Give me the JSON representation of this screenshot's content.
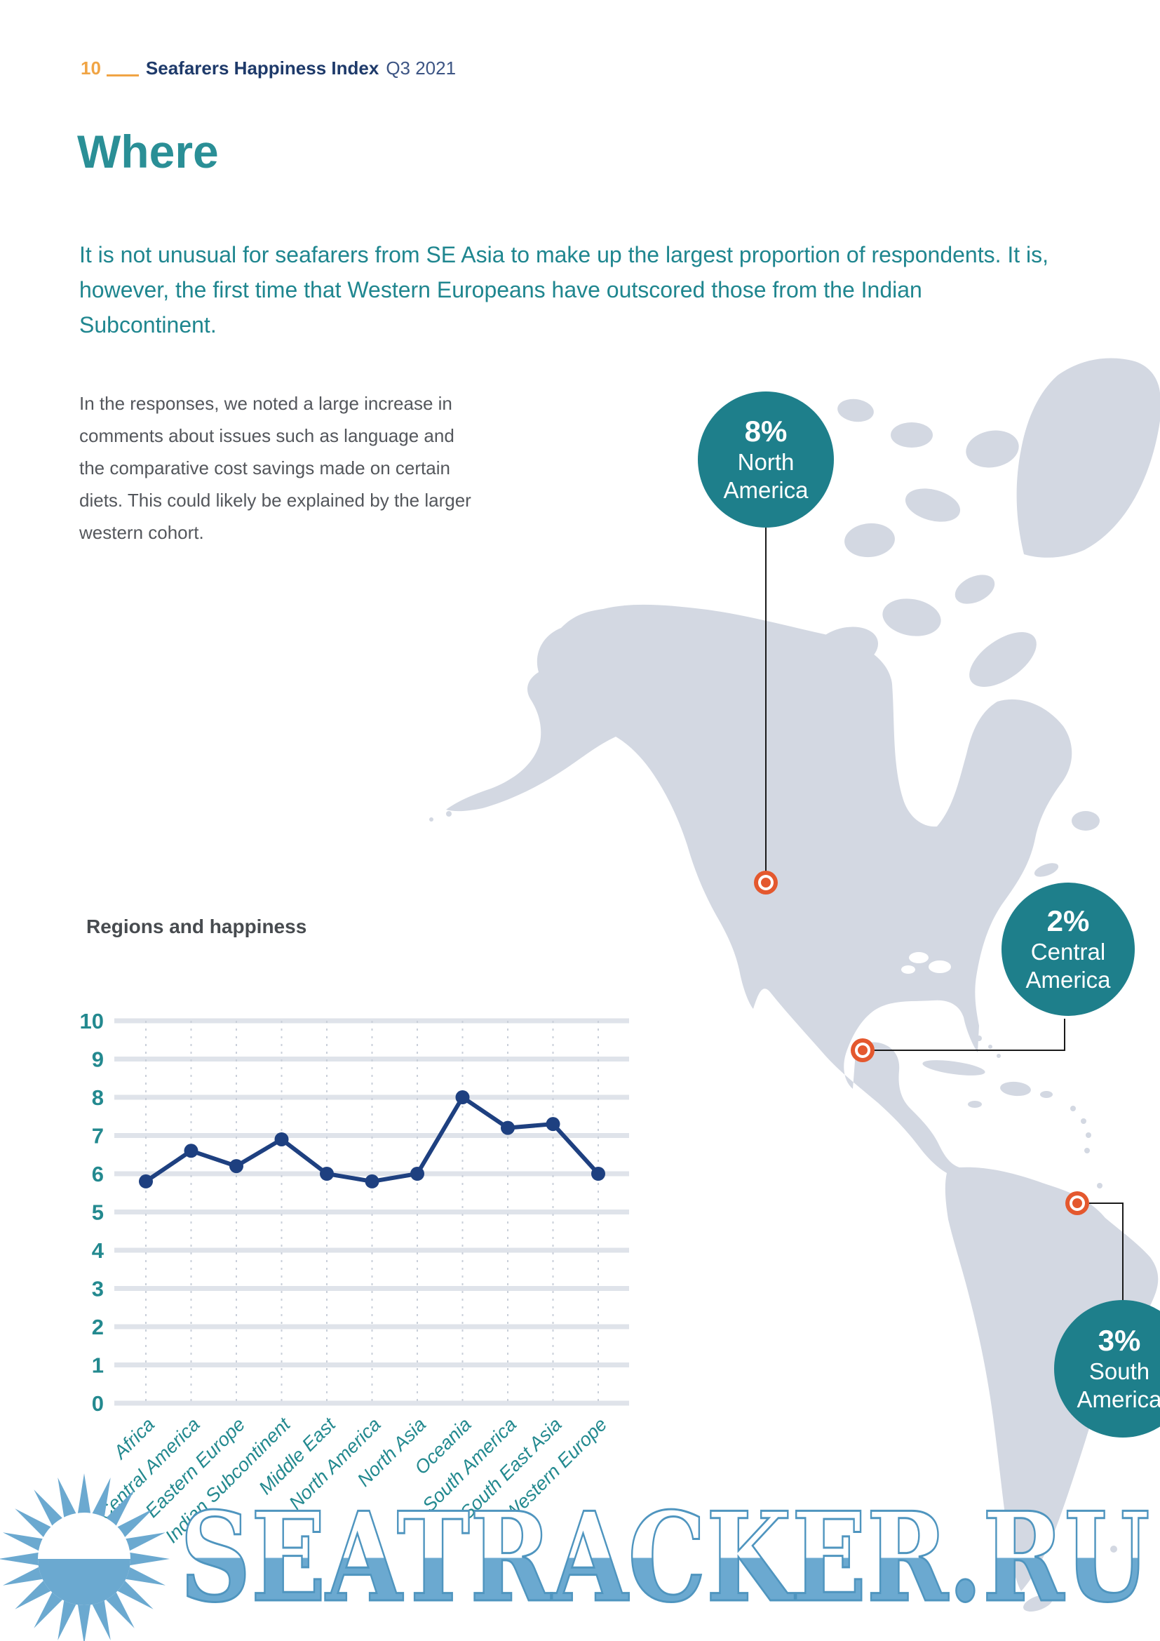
{
  "page": {
    "number": "10",
    "report_title": "Seafarers Happiness Index",
    "report_period": "Q3 2021"
  },
  "heading": "Where",
  "intro": "It is not unusual for seafarers from SE Asia to make up the largest proportion of respondents. It is, however, the first time that Western Europeans have outscored those from the Indian Subcontinent.",
  "body": "In the responses, we noted a large increase in comments about issues such as language and the comparative cost savings made on certain diets. This could likely be explained by the larger western cohort.",
  "map": {
    "callouts": [
      {
        "value": "8%",
        "region_line1": "North",
        "region_line2": "America"
      },
      {
        "value": "2%",
        "region_line1": "Central",
        "region_line2": "America"
      },
      {
        "value": "3%",
        "region_line1": "South",
        "region_line2": "America"
      }
    ]
  },
  "chart_data": {
    "type": "line",
    "title": "Regions and happiness",
    "categories": [
      "Africa",
      "Central America",
      "Eastern Europe",
      "Indian Subcontinent",
      "Middle East",
      "North America",
      "North Asia",
      "Oceania",
      "South America",
      "South East Asia",
      "Western Europe"
    ],
    "values": [
      5.8,
      6.6,
      6.2,
      6.9,
      6.0,
      5.8,
      6.0,
      8.0,
      7.2,
      7.3,
      6.0
    ],
    "ylabel": "",
    "xlabel": "",
    "ylim": [
      0,
      10
    ],
    "yticks": [
      0,
      1,
      2,
      3,
      4,
      5,
      6,
      7,
      8,
      9,
      10
    ],
    "grid": true,
    "legend": "none"
  },
  "watermark": {
    "text": "SEATRACKER.RU"
  },
  "colors": {
    "teal_bubble": "#1e7f8b",
    "teal_text": "#1f868f",
    "heading_teal": "#2a8f96",
    "axis_teal": "#23898f",
    "orange": "#e4582e",
    "header_orange": "#f0a444",
    "header_navy": "#1e3a6a",
    "period_navy": "#3d5584",
    "body_gray": "#54575c",
    "title_gray": "#474b4f",
    "line": "#1e4080",
    "gridline": "#dfe3ea",
    "grid_dot": "#c9cfd9",
    "map_fill": "#d3d8e2",
    "connector": "#1a1a1a",
    "watermark_blue": "#6ba9d0",
    "watermark_outline": "#4f95bf"
  }
}
